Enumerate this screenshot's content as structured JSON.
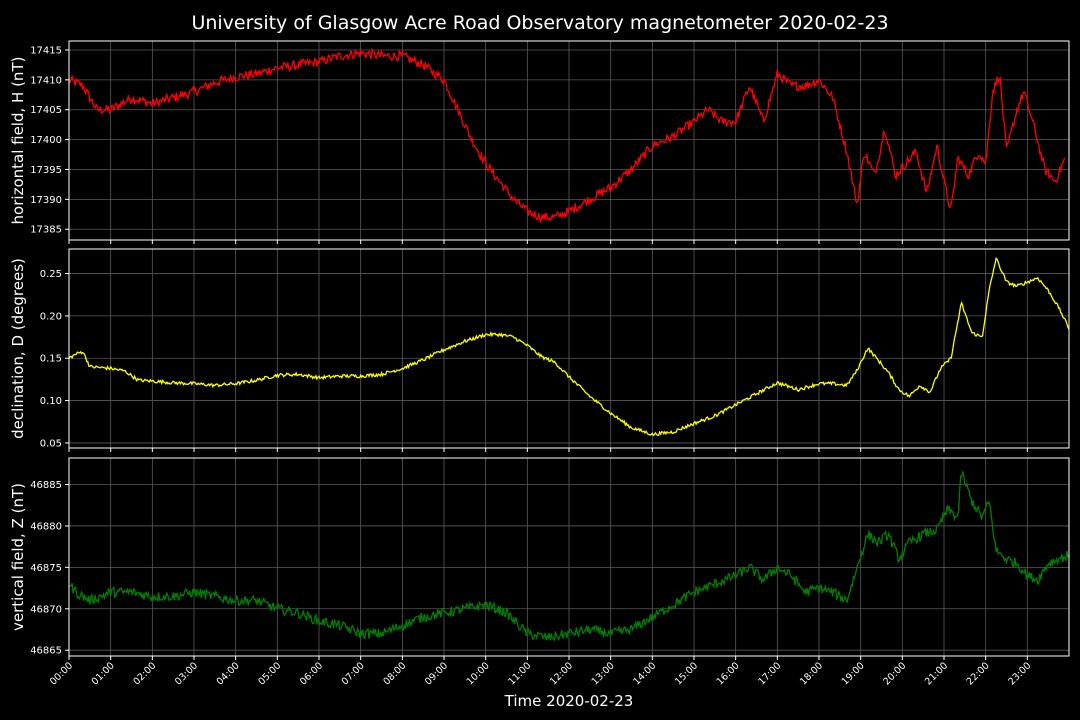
{
  "chart_data": {
    "type": "line",
    "title": "University of Glasgow Acre Road Observatory magnetometer 2020-02-23",
    "xlabel": "Time 2020-02-23",
    "x_ticks": [
      "00:00",
      "01:00",
      "02:00",
      "03:00",
      "04:00",
      "05:00",
      "06:00",
      "07:00",
      "08:00",
      "09:00",
      "10:00",
      "11:00",
      "12:00",
      "13:00",
      "14:00",
      "15:00",
      "16:00",
      "17:00",
      "18:00",
      "19:00",
      "20:00",
      "21:00",
      "22:00",
      "23:00"
    ],
    "xlim": [
      "00:00",
      "24:00"
    ],
    "grid": true,
    "panels": [
      {
        "ylabel": "horizontal field, H (nT)",
        "color": "#ff0000",
        "ylim": [
          17383.2,
          17416.5
        ],
        "yticks": [
          17385,
          17390,
          17395,
          17400,
          17405,
          17410,
          17415
        ],
        "noise": 0.8,
        "x": [
          "00:00",
          "00:20",
          "00:40",
          "01:00",
          "01:30",
          "02:00",
          "02:30",
          "03:00",
          "03:30",
          "04:00",
          "04:30",
          "05:00",
          "05:30",
          "06:00",
          "06:30",
          "07:00",
          "07:30",
          "08:00",
          "08:30",
          "09:00",
          "09:20",
          "09:40",
          "10:00",
          "10:20",
          "10:40",
          "11:00",
          "11:20",
          "11:40",
          "12:00",
          "12:30",
          "13:00",
          "13:30",
          "14:00",
          "14:30",
          "15:00",
          "15:20",
          "15:40",
          "16:00",
          "16:10",
          "16:20",
          "16:40",
          "17:00",
          "17:20",
          "17:40",
          "18:00",
          "18:20",
          "18:40",
          "18:55",
          "19:05",
          "19:20",
          "19:35",
          "19:50",
          "20:05",
          "20:20",
          "20:35",
          "20:50",
          "21:00",
          "21:10",
          "21:20",
          "21:35",
          "21:50",
          "22:00",
          "22:10",
          "22:20",
          "22:30",
          "22:45",
          "22:55",
          "23:10",
          "23:25",
          "23:40",
          "23:55"
        ],
        "values": [
          17410,
          17409,
          17405,
          17405,
          17407,
          17406,
          17407,
          17408,
          17409.5,
          17410.5,
          17411,
          17412,
          17412.5,
          17413,
          17414,
          17414.5,
          17414,
          17414,
          17412.5,
          17410,
          17405,
          17400,
          17396,
          17393,
          17390,
          17388,
          17387,
          17387,
          17388,
          17390,
          17392,
          17395,
          17399,
          17400.5,
          17403,
          17405,
          17403,
          17403,
          17406,
          17409,
          17403,
          17411,
          17409,
          17409,
          17410,
          17407,
          17398,
          17389,
          17398,
          17394,
          17402,
          17394,
          17396,
          17398,
          17391,
          17399,
          17393,
          17388,
          17397,
          17394,
          17398,
          17396,
          17408,
          17411,
          17398,
          17405,
          17408,
          17402,
          17395,
          17393,
          17397
        ]
      },
      {
        "ylabel": "declination, D (degrees)",
        "color": "#ffff00",
        "ylim": [
          0.044,
          0.279
        ],
        "yticks": [
          0.05,
          0.1,
          0.15,
          0.2,
          0.25
        ],
        "yticks_labels": [
          "0.05",
          "0.10",
          "0.15",
          "0.20",
          "0.25"
        ],
        "noise": 0.002,
        "x": [
          "00:00",
          "00:10",
          "00:20",
          "00:30",
          "01:00",
          "01:20",
          "01:40",
          "02:00",
          "02:30",
          "03:00",
          "03:30",
          "04:00",
          "04:30",
          "05:00",
          "05:30",
          "06:00",
          "06:30",
          "07:00",
          "07:30",
          "08:00",
          "08:30",
          "09:00",
          "09:30",
          "10:00",
          "10:20",
          "10:40",
          "11:00",
          "11:20",
          "11:40",
          "12:00",
          "12:30",
          "13:00",
          "13:30",
          "14:00",
          "14:30",
          "15:00",
          "15:30",
          "16:00",
          "16:30",
          "17:00",
          "17:30",
          "18:00",
          "18:20",
          "18:40",
          "18:55",
          "19:10",
          "19:25",
          "19:40",
          "19:55",
          "20:10",
          "20:25",
          "20:40",
          "20:55",
          "21:10",
          "21:25",
          "21:40",
          "21:55",
          "22:05",
          "22:15",
          "22:30",
          "22:45",
          "23:00",
          "23:15",
          "23:30",
          "23:45",
          "24:00"
        ],
        "values": [
          0.15,
          0.155,
          0.158,
          0.14,
          0.138,
          0.135,
          0.124,
          0.123,
          0.121,
          0.12,
          0.118,
          0.12,
          0.124,
          0.13,
          0.131,
          0.127,
          0.129,
          0.129,
          0.131,
          0.138,
          0.148,
          0.16,
          0.17,
          0.178,
          0.178,
          0.175,
          0.165,
          0.152,
          0.145,
          0.128,
          0.105,
          0.085,
          0.068,
          0.06,
          0.063,
          0.073,
          0.082,
          0.095,
          0.108,
          0.121,
          0.113,
          0.12,
          0.12,
          0.118,
          0.136,
          0.162,
          0.148,
          0.133,
          0.113,
          0.105,
          0.118,
          0.11,
          0.138,
          0.15,
          0.215,
          0.18,
          0.175,
          0.23,
          0.268,
          0.24,
          0.235,
          0.24,
          0.245,
          0.23,
          0.21,
          0.185
        ]
      },
      {
        "ylabel": "vertical field, Z (nT)",
        "color": "#008000",
        "ylim": [
          46864.3,
          46888.2
        ],
        "yticks": [
          46865,
          46870,
          46875,
          46880,
          46885
        ],
        "noise": 0.6,
        "x": [
          "00:00",
          "00:10",
          "00:30",
          "01:00",
          "01:30",
          "02:00",
          "02:30",
          "03:00",
          "03:30",
          "04:00",
          "04:30",
          "05:00",
          "05:30",
          "06:00",
          "06:30",
          "07:00",
          "07:30",
          "08:00",
          "08:30",
          "09:00",
          "09:30",
          "10:00",
          "10:30",
          "11:00",
          "11:30",
          "12:00",
          "12:30",
          "13:00",
          "13:30",
          "14:00",
          "14:30",
          "15:00",
          "15:30",
          "16:00",
          "16:20",
          "16:40",
          "17:00",
          "17:20",
          "17:40",
          "18:00",
          "18:20",
          "18:40",
          "18:55",
          "19:10",
          "19:25",
          "19:40",
          "19:55",
          "20:10",
          "20:30",
          "20:50",
          "21:05",
          "21:20",
          "21:25",
          "21:40",
          "21:55",
          "22:05",
          "22:15",
          "22:30",
          "22:45",
          "23:00",
          "23:15",
          "23:30",
          "23:45",
          "24:00"
        ],
        "values": [
          46873,
          46872,
          46871,
          46872,
          46872,
          46871.5,
          46871.5,
          46872,
          46871.5,
          46871,
          46871,
          46870,
          46869.5,
          46868.5,
          46868,
          46867,
          46867,
          46868,
          46869,
          46869.5,
          46870,
          46870.5,
          46869.5,
          46867,
          46866.5,
          46867,
          46867.5,
          46867,
          46867.5,
          46869,
          46870.5,
          46872,
          46873,
          46874,
          46875,
          46873.5,
          46875,
          46874,
          46872,
          46872.5,
          46872,
          46871,
          46875,
          46879,
          46878,
          46879,
          46876,
          46878,
          46879,
          46879.5,
          46882,
          46881,
          46886.5,
          46883,
          46881,
          46883,
          46877,
          46876,
          46875.5,
          46874,
          46873.5,
          46875.5,
          46876,
          46876.5
        ]
      }
    ]
  }
}
